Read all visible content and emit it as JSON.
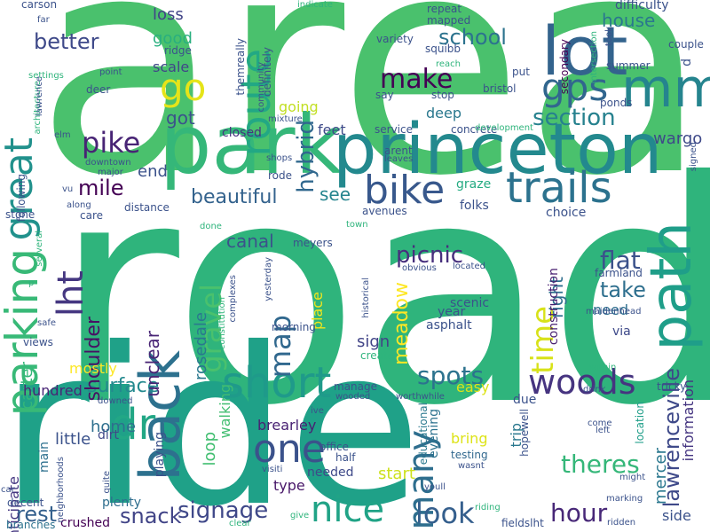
{
  "words": [
    {
      "text": "area",
      "color": "#4ac16d"
    },
    {
      "text": "road",
      "color": "#2fb47c"
    },
    {
      "text": "ride",
      "color": "#1fa188"
    },
    {
      "text": "park",
      "color": "#35b779"
    },
    {
      "text": "princeton",
      "color": "#23898e"
    },
    {
      "text": "lot",
      "color": "#33638d"
    },
    {
      "text": "path",
      "color": "#1f9e89"
    },
    {
      "text": "mm",
      "color": "#25848e"
    },
    {
      "text": "trails",
      "color": "#2c728e"
    },
    {
      "text": "route",
      "color": "#22a884"
    },
    {
      "text": "parking",
      "color": "#38b977"
    },
    {
      "text": "go",
      "color": "#e5e419"
    },
    {
      "text": "gps",
      "color": "#31668e"
    },
    {
      "text": "bike",
      "color": "#38588c"
    },
    {
      "text": "back",
      "color": "#2d718e"
    },
    {
      "text": "great",
      "color": "#21918c"
    },
    {
      "text": "lht",
      "color": "#453781"
    },
    {
      "text": "dr",
      "color": "#22a785"
    },
    {
      "text": "short",
      "color": "#1f9a8a"
    },
    {
      "text": "nice",
      "color": "#20a386"
    },
    {
      "text": "one",
      "color": "#3b528b"
    },
    {
      "text": "many",
      "color": "#2e6e8e"
    },
    {
      "text": "lawrenceville",
      "color": "#3e4989"
    },
    {
      "text": "woods",
      "color": "#463480"
    },
    {
      "text": "time",
      "color": "#d8e219"
    },
    {
      "text": "map",
      "color": "#31688e"
    },
    {
      "text": "gravel",
      "color": "#4ac16d"
    },
    {
      "text": "pike",
      "color": "#482475"
    },
    {
      "text": "make",
      "color": "#440154"
    },
    {
      "text": "school",
      "color": "#2c738e"
    },
    {
      "text": "section",
      "color": "#26818e"
    },
    {
      "text": "hybrid",
      "color": "#31688e"
    },
    {
      "text": "better",
      "color": "#3e4989"
    },
    {
      "text": "mile",
      "color": "#440154"
    },
    {
      "text": "beautiful",
      "color": "#33628d"
    },
    {
      "text": "signage",
      "color": "#3f4889"
    },
    {
      "text": "hour",
      "color": "#482878"
    },
    {
      "text": "look",
      "color": "#355f8d"
    },
    {
      "text": "theres",
      "color": "#35b779"
    },
    {
      "text": "flat",
      "color": "#3b528b"
    },
    {
      "text": "take",
      "color": "#2e6f8e"
    },
    {
      "text": "picnic",
      "color": "#472f7d"
    },
    {
      "text": "spots",
      "color": "#2c728e"
    },
    {
      "text": "surface",
      "color": "#23898e"
    },
    {
      "text": "snack",
      "color": "#414487"
    },
    {
      "text": "rest",
      "color": "#34608d"
    },
    {
      "text": "meadow",
      "color": "#fde725"
    },
    {
      "text": "shoulder",
      "color": "#471164"
    },
    {
      "text": "unclear",
      "color": "#482475"
    },
    {
      "text": "rosedale",
      "color": "#2a788e"
    },
    {
      "text": "carter",
      "color": "#35b779"
    },
    {
      "text": "canal",
      "color": "#3b528b"
    },
    {
      "text": "house",
      "color": "#2a788e"
    },
    {
      "text": "good",
      "color": "#29af7f"
    },
    {
      "text": "loss",
      "color": "#414487"
    },
    {
      "text": "scale",
      "color": "#404688"
    },
    {
      "text": "got",
      "color": "#3b528b"
    },
    {
      "text": "end",
      "color": "#3b528b"
    },
    {
      "text": "wargo",
      "color": "#3e4989"
    },
    {
      "text": "closed",
      "color": "#46337f"
    },
    {
      "text": "feet",
      "color": "#3e4a89"
    },
    {
      "text": "see",
      "color": "#25848e"
    },
    {
      "text": "going",
      "color": "#c2df23"
    },
    {
      "text": "deep",
      "color": "#2a788e"
    },
    {
      "text": "right",
      "color": "#2e6e8e"
    },
    {
      "text": "need",
      "color": "#2e6e8e"
    },
    {
      "text": "sign",
      "color": "#414487"
    },
    {
      "text": "place",
      "color": "#f1e51d"
    },
    {
      "text": "construction",
      "color": "#481f70"
    },
    {
      "text": "mercer",
      "color": "#2a778e"
    },
    {
      "text": "information",
      "color": "#453581"
    },
    {
      "text": "side",
      "color": "#3b528b"
    },
    {
      "text": "start",
      "color": "#cde11d"
    },
    {
      "text": "type",
      "color": "#481769"
    },
    {
      "text": "brearley",
      "color": "#482173"
    },
    {
      "text": "loop",
      "color": "#42be71"
    },
    {
      "text": "walking",
      "color": "#42be71"
    },
    {
      "text": "home",
      "color": "#2e6f8e"
    },
    {
      "text": "little",
      "color": "#3b528b"
    },
    {
      "text": "needed",
      "color": "#3e4989"
    },
    {
      "text": "bring",
      "color": "#dde318"
    },
    {
      "text": "trip",
      "color": "#2a788e"
    },
    {
      "text": "easy",
      "color": "#dde318"
    },
    {
      "text": "mostly",
      "color": "#fde725"
    },
    {
      "text": "hundred",
      "color": "#482475"
    },
    {
      "text": "anticipate",
      "color": "#453781"
    },
    {
      "text": "main",
      "color": "#2d708e"
    },
    {
      "text": "plenty",
      "color": "#2e6e8e"
    },
    {
      "text": "crushed",
      "color": "#440154"
    },
    {
      "text": "branches",
      "color": "#2c728e"
    },
    {
      "text": "dirt",
      "color": "#3f4889"
    },
    {
      "text": "playing",
      "color": "#3b528b"
    },
    {
      "text": "year",
      "color": "#3b528b"
    },
    {
      "text": "scenic",
      "color": "#3b528b"
    },
    {
      "text": "asphalt",
      "color": "#3b528b"
    },
    {
      "text": "via",
      "color": "#3e4989"
    },
    {
      "text": "evening",
      "color": "#2c728e"
    },
    {
      "text": "testing",
      "color": "#31688e"
    },
    {
      "text": "educational",
      "color": "#2a788e"
    },
    {
      "text": "hopewell",
      "color": "#3b528b"
    },
    {
      "text": "due",
      "color": "#3b528b"
    },
    {
      "text": "location",
      "color": "#1f9e89"
    },
    {
      "text": "maidenhead",
      "color": "#3b528b"
    },
    {
      "text": "farmland",
      "color": "#3b528b"
    },
    {
      "text": "choice",
      "color": "#3b528b"
    },
    {
      "text": "folks",
      "color": "#3b528b"
    },
    {
      "text": "avenues",
      "color": "#3b528b"
    },
    {
      "text": "graze",
      "color": "#25ab82"
    },
    {
      "text": "concrete",
      "color": "#3b528b"
    },
    {
      "text": "service",
      "color": "#3b528b"
    },
    {
      "text": "stop",
      "color": "#3b528b"
    },
    {
      "text": "bristol",
      "color": "#3b528b"
    },
    {
      "text": "repeat",
      "color": "#3b528b"
    },
    {
      "text": "mapped",
      "color": "#3b528b"
    },
    {
      "text": "squibb",
      "color": "#3b528b"
    },
    {
      "text": "variety",
      "color": "#3b528b"
    },
    {
      "text": "say",
      "color": "#3b528b"
    },
    {
      "text": "put",
      "color": "#3b528b"
    },
    {
      "text": "secondary",
      "color": "#440154"
    },
    {
      "text": "difficulty",
      "color": "#3b528b"
    },
    {
      "text": "couple",
      "color": "#3b528b"
    },
    {
      "text": "summer",
      "color": "#3b528b"
    },
    {
      "text": "ponds",
      "color": "#3b528b"
    },
    {
      "text": "took",
      "color": "#3b528b"
    },
    {
      "text": "intersection",
      "color": "#2fb47c"
    },
    {
      "text": "development",
      "color": "#2fb47c"
    },
    {
      "text": "arent",
      "color": "#3b528b"
    },
    {
      "text": "leaves",
      "color": "#3b528b"
    },
    {
      "text": "signed",
      "color": "#3b528b"
    },
    {
      "text": "distance",
      "color": "#3b528b"
    },
    {
      "text": "care",
      "color": "#3b528b"
    },
    {
      "text": "following",
      "color": "#3b528b"
    },
    {
      "text": "stone",
      "color": "#3b528b"
    },
    {
      "text": "deer",
      "color": "#3b528b"
    },
    {
      "text": "point",
      "color": "#3b528b"
    },
    {
      "text": "settings",
      "color": "#2fb47c"
    },
    {
      "text": "architecture",
      "color": "#2fb47c"
    },
    {
      "text": "lawrence",
      "color": "#3b528b"
    },
    {
      "text": "carson",
      "color": "#3b528b"
    },
    {
      "text": "far",
      "color": "#3b528b"
    },
    {
      "text": "ridge",
      "color": "#3b528b"
    },
    {
      "text": "indicate",
      "color": "#2fb47c"
    },
    {
      "text": "themreally",
      "color": "#3b528b"
    },
    {
      "text": "definitely",
      "color": "#3b528b"
    },
    {
      "text": "community",
      "color": "#3b528b"
    },
    {
      "text": "mixture",
      "color": "#3b528b"
    },
    {
      "text": "reach",
      "color": "#2fb47c"
    },
    {
      "text": "elm",
      "color": "#3b528b"
    },
    {
      "text": "downtown",
      "color": "#3b528b"
    },
    {
      "text": "major",
      "color": "#3b528b"
    },
    {
      "text": "shops",
      "color": "#3b528b"
    },
    {
      "text": "rode",
      "color": "#3b528b"
    },
    {
      "text": "along",
      "color": "#3b528b"
    },
    {
      "text": "town",
      "color": "#2fb47c"
    },
    {
      "text": "done",
      "color": "#2fb47c"
    },
    {
      "text": "meyers",
      "color": "#3b528b"
    },
    {
      "text": "located",
      "color": "#3b528b"
    },
    {
      "text": "obvious",
      "color": "#3b528b"
    },
    {
      "text": "historical",
      "color": "#3b528b"
    },
    {
      "text": "yesterday",
      "color": "#3b528b"
    },
    {
      "text": "morning",
      "color": "#3b528b"
    },
    {
      "text": "complexes",
      "color": "#3b528b"
    },
    {
      "text": "constitution",
      "color": "#2fb47c"
    },
    {
      "text": "safe",
      "color": "#3b528b"
    },
    {
      "text": "views",
      "color": "#3b528b"
    },
    {
      "text": "serveral",
      "color": "#2fb47c"
    },
    {
      "text": "create",
      "color": "#2fb47c"
    },
    {
      "text": "manage",
      "color": "#3b528b"
    },
    {
      "text": "wooded",
      "color": "#3b528b"
    },
    {
      "text": "ive",
      "color": "#3b528b"
    },
    {
      "text": "worthwhile",
      "color": "#3b528b"
    },
    {
      "text": "office",
      "color": "#3b528b"
    },
    {
      "text": "half",
      "color": "#3b528b"
    },
    {
      "text": "visiti",
      "color": "#3b528b"
    },
    {
      "text": "youll",
      "color": "#3b528b"
    },
    {
      "text": "wasnt",
      "color": "#3b528b"
    },
    {
      "text": "riding",
      "color": "#2fb47c"
    },
    {
      "text": "give",
      "color": "#2fb47c"
    },
    {
      "text": "clear",
      "color": "#2fb47c"
    },
    {
      "text": "fieldslht",
      "color": "#3b528b"
    },
    {
      "text": "ridden",
      "color": "#3b528b"
    },
    {
      "text": "marking",
      "color": "#3b528b"
    },
    {
      "text": "might",
      "color": "#3b528b"
    },
    {
      "text": "come",
      "color": "#3b528b"
    },
    {
      "text": "left",
      "color": "#3b528b"
    },
    {
      "text": "drink",
      "color": "#3b528b"
    },
    {
      "text": "tricky",
      "color": "#3b528b"
    },
    {
      "text": "within",
      "color": "#2fb47c"
    },
    {
      "text": "downed",
      "color": "#3b528b"
    },
    {
      "text": "quite",
      "color": "#3b528b"
    },
    {
      "text": "neighborhoods",
      "color": "#3b528b"
    },
    {
      "text": "decent",
      "color": "#3b528b"
    },
    {
      "text": "car",
      "color": "#3b528b"
    },
    {
      "text": "vu",
      "color": "#3b528b"
    },
    {
      "text": "p",
      "color": "#2fb47c"
    },
    {
      "text": "d",
      "color": "#3b528b"
    }
  ]
}
